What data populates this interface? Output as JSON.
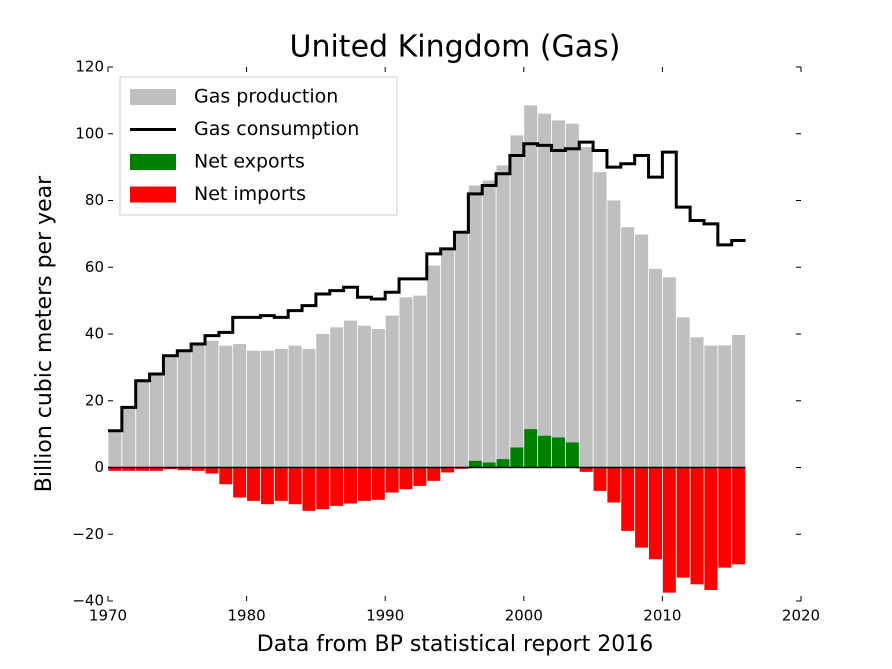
{
  "chart_data": {
    "type": "bar",
    "title": "United Kingdom (Gas)",
    "x_label": "Data from BP statistical report 2016",
    "y_label": "Billion cubic meters per year",
    "x": [
      1970,
      1971,
      1972,
      1973,
      1974,
      1975,
      1976,
      1977,
      1978,
      1979,
      1980,
      1981,
      1982,
      1983,
      1984,
      1985,
      1986,
      1987,
      1988,
      1989,
      1990,
      1991,
      1992,
      1993,
      1994,
      1995,
      1996,
      1997,
      1998,
      1999,
      2000,
      2001,
      2002,
      2003,
      2004,
      2005,
      2006,
      2007,
      2008,
      2009,
      2010,
      2011,
      2012,
      2013,
      2014,
      2015
    ],
    "series": [
      {
        "name": "Gas production",
        "type": "bar",
        "color": "#bfbfbf",
        "values": [
          11,
          18,
          26,
          28,
          33,
          35,
          37,
          38,
          36.5,
          37,
          35,
          35,
          35.5,
          36.5,
          35.5,
          40,
          42,
          44,
          42.5,
          41.5,
          45.5,
          51,
          51.5,
          60.5,
          65,
          70,
          84.5,
          86,
          90.5,
          99.5,
          108.5,
          106,
          104,
          103,
          96,
          88.5,
          80,
          72,
          69.8,
          59.5,
          57,
          45,
          39,
          36.5,
          36.6,
          39.7
        ]
      },
      {
        "name": "Gas consumption",
        "type": "step",
        "color": "#000000",
        "values": [
          11,
          18,
          26,
          28,
          33.5,
          35,
          37,
          39.5,
          40.5,
          45,
          45,
          45.5,
          45,
          47,
          48.5,
          52,
          53,
          54,
          51,
          50.5,
          52.5,
          56.5,
          56.5,
          64,
          65.5,
          70.5,
          82,
          84.5,
          88,
          93.5,
          97,
          96.5,
          95,
          95.5,
          97.5,
          95,
          90,
          91,
          93.5,
          87,
          94.5,
          78,
          74,
          73,
          66.7,
          68
        ]
      },
      {
        "name": "Net exports",
        "type": "bar",
        "color": "#008000",
        "values": [
          null,
          null,
          null,
          null,
          null,
          null,
          null,
          null,
          null,
          null,
          null,
          null,
          null,
          null,
          null,
          null,
          null,
          null,
          null,
          null,
          null,
          null,
          null,
          null,
          null,
          null,
          2,
          1.5,
          2.5,
          6,
          11.5,
          9.5,
          9,
          7.5,
          null,
          null,
          null,
          null,
          null,
          null,
          null,
          null,
          null,
          null,
          null,
          null
        ]
      },
      {
        "name": "Net imports",
        "type": "bar",
        "color": "#ff0000",
        "values": [
          -1,
          -1,
          -1,
          -1,
          -0.5,
          -0.8,
          -1,
          -1.8,
          -5,
          -9,
          -10,
          -11,
          -10,
          -11,
          -13,
          -12.5,
          -11.5,
          -10.8,
          -10,
          -9.7,
          -7.5,
          -6.5,
          -5.5,
          -4,
          -1.5,
          -0.4,
          null,
          null,
          null,
          null,
          null,
          null,
          null,
          null,
          -1.3,
          -7,
          -10.5,
          -19,
          -24,
          -27.5,
          -37.5,
          -33,
          -35,
          -36.7,
          -30,
          -29
        ]
      }
    ],
    "xlim": [
      1970,
      2020
    ],
    "xticks": [
      1970,
      1980,
      1990,
      2000,
      2010,
      2020
    ],
    "ylim": [
      -40,
      120
    ],
    "yticks": [
      {
        "value": -40,
        "label": "−40"
      },
      {
        "value": -20,
        "label": "−20"
      },
      0,
      20,
      40,
      60,
      80,
      100,
      120
    ],
    "legend": "upper left",
    "grid": false
  }
}
